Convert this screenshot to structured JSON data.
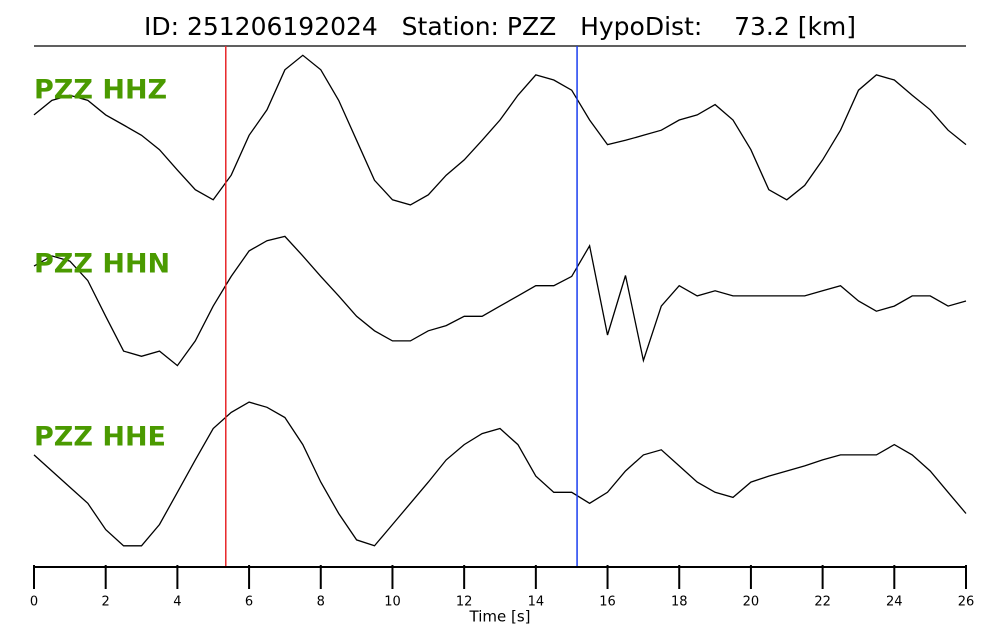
{
  "chart_data": {
    "type": "line",
    "title": "ID: 251206192024   Station: PZZ   HypoDist:    73.2 [km]",
    "x_label": "Time [s]",
    "xlim": [
      0,
      26
    ],
    "xticks": [
      0,
      2,
      4,
      6,
      8,
      10,
      12,
      14,
      16,
      18,
      20,
      22,
      24,
      26
    ],
    "x": [
      0,
      0.5,
      1,
      1.5,
      2,
      2.5,
      3,
      3.5,
      4,
      4.5,
      5,
      5.5,
      6,
      6.5,
      7,
      7.5,
      8,
      8.5,
      9,
      9.5,
      10,
      10.5,
      11,
      11.5,
      12,
      12.5,
      13,
      13.5,
      14,
      14.5,
      15,
      15.5,
      16,
      16.5,
      17,
      17.5,
      18,
      18.5,
      19,
      19.5,
      20,
      20.5,
      21,
      21.5,
      22,
      22.5,
      23,
      23.5,
      24,
      24.5,
      25,
      25.5,
      26
    ],
    "label_color": "#4a9a00",
    "markers": [
      {
        "x": 5.35,
        "color": "#e8262a"
      },
      {
        "x": 15.15,
        "color": "#1a3ef0"
      }
    ],
    "series": [
      {
        "name": "PZZ HHZ",
        "color": "#000000",
        "ylim": [
          -1,
          1
        ],
        "values": [
          0.19,
          0.36,
          0.42,
          0.36,
          0.19,
          0.07,
          -0.05,
          -0.22,
          -0.46,
          -0.69,
          -0.81,
          -0.52,
          -0.05,
          0.25,
          0.72,
          0.89,
          0.72,
          0.36,
          -0.11,
          -0.58,
          -0.81,
          -0.87,
          -0.75,
          -0.52,
          -0.34,
          -0.11,
          0.13,
          0.42,
          0.66,
          0.6,
          0.48,
          0.13,
          -0.16,
          -0.11,
          -0.05,
          0.01,
          0.13,
          0.19,
          0.31,
          0.13,
          -0.22,
          -0.69,
          -0.81,
          -0.64,
          -0.34,
          0.01,
          0.48,
          0.66,
          0.6,
          0.42,
          0.25,
          0.01,
          -0.16
        ]
      },
      {
        "name": "PZZ HHN",
        "color": "#000000",
        "ylim": [
          -1,
          1
        ],
        "values": [
          0.41,
          0.53,
          0.47,
          0.24,
          -0.18,
          -0.59,
          -0.65,
          -0.59,
          -0.76,
          -0.47,
          -0.06,
          0.29,
          0.59,
          0.71,
          0.76,
          0.53,
          0.29,
          0.06,
          -0.18,
          -0.35,
          -0.47,
          -0.47,
          -0.35,
          -0.29,
          -0.18,
          -0.18,
          -0.06,
          0.06,
          0.18,
          0.18,
          0.29,
          0.65,
          -0.4,
          0.3,
          -0.7,
          -0.06,
          0.18,
          0.06,
          0.12,
          0.06,
          0.06,
          0.06,
          0.06,
          0.06,
          0.12,
          0.18,
          0,
          -0.12,
          -0.06,
          0.06,
          0.06,
          -0.06,
          0
        ]
      },
      {
        "name": "PZZ HHE",
        "color": "#000000",
        "ylim": [
          -1,
          1
        ],
        "values": [
          0.19,
          0,
          -0.19,
          -0.38,
          -0.69,
          -0.88,
          -0.88,
          -0.63,
          -0.25,
          0.13,
          0.5,
          0.69,
          0.81,
          0.75,
          0.63,
          0.31,
          -0.13,
          -0.5,
          -0.81,
          -0.88,
          -0.63,
          -0.38,
          -0.13,
          0.13,
          0.31,
          0.44,
          0.5,
          0.31,
          -0.06,
          -0.25,
          -0.25,
          -0.38,
          -0.25,
          0,
          0.19,
          0.25,
          0.06,
          -0.13,
          -0.25,
          -0.31,
          -0.13,
          -0.06,
          0,
          0.06,
          0.13,
          0.19,
          0.19,
          0.19,
          0.31,
          0.19,
          0,
          -0.25,
          -0.5
        ]
      }
    ]
  }
}
